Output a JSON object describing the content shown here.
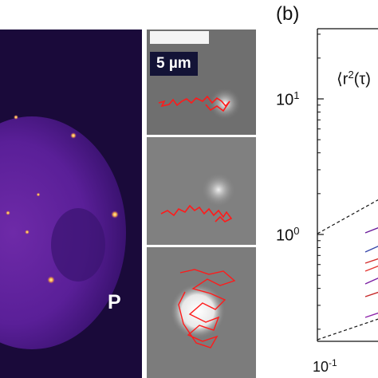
{
  "panel_b": {
    "label": "(b)"
  },
  "panel_a": {
    "region_label": "P"
  },
  "tracks": {
    "scale_bar_label": "5 µm"
  },
  "chart_data": {
    "type": "line",
    "title": "",
    "ylabel_prefix": "⟨r",
    "ylabel_exp": "2",
    "ylabel_suffix": "(τ)",
    "yscale": "log",
    "xscale": "log",
    "y_ticks": [
      {
        "base": "10",
        "exp": "1"
      },
      {
        "base": "10",
        "exp": "0"
      }
    ],
    "x_ticks": [
      {
        "base": "10",
        "exp": "-1"
      }
    ],
    "series_colors": [
      "#6a1b9a",
      "#3949ab",
      "#d32f2f",
      "#e53935",
      "#7b1fa2",
      "#c62828",
      "#8e24aa"
    ]
  }
}
